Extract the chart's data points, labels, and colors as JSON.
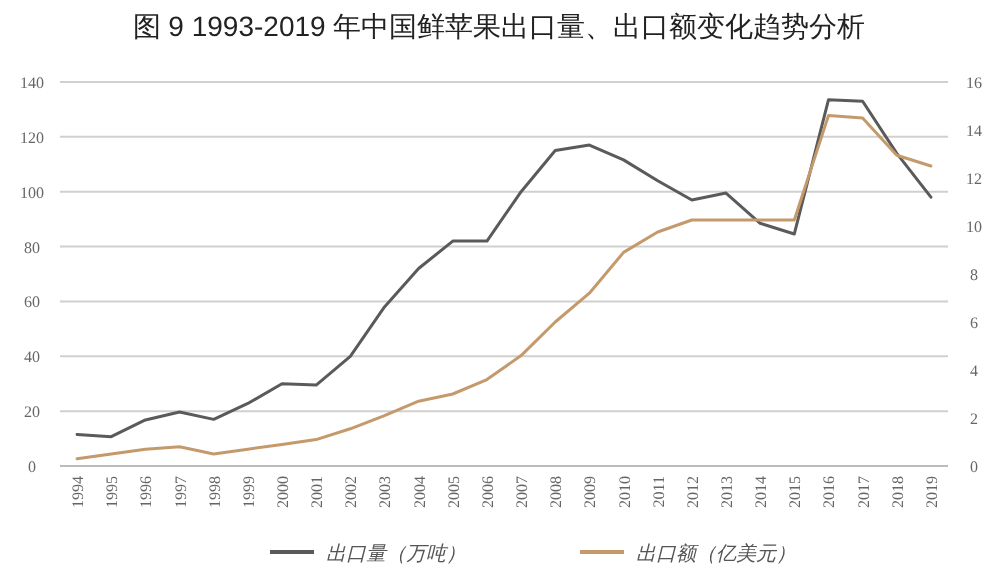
{
  "chart_data": {
    "type": "line",
    "title": "图 9  1993-2019 年中国鲜苹果出口量、出口额变化趋势分析",
    "categories": [
      "1994",
      "1995",
      "1996",
      "1997",
      "1998",
      "1999",
      "2000",
      "2001",
      "2002",
      "2003",
      "2004",
      "2005",
      "2006",
      "2007",
      "2008",
      "2009",
      "2010",
      "2011",
      "2012",
      "2013",
      "2014",
      "2015",
      "2016",
      "2017",
      "2018",
      "2019"
    ],
    "series": [
      {
        "name": "出口量（万吨）",
        "color": "#5a5a5a",
        "values": [
          11.5,
          10.7,
          16.8,
          19.7,
          17,
          22.8,
          30,
          29.5,
          40,
          58,
          72,
          82,
          82,
          100,
          115,
          117,
          111.6,
          104,
          97,
          99.5,
          88.5,
          84.6,
          133.5,
          133,
          114,
          98
        ]
      },
      {
        "name": "出口额（亿美元）",
        "color": "#c49a6c",
        "axis": "y2",
        "values": [
          0.3,
          0.5,
          0.7,
          0.8,
          0.5,
          0.7,
          0.9,
          1.1,
          1.55,
          2.1,
          2.7,
          3.0,
          3.6,
          4.6,
          6.0,
          7.2,
          8.9,
          9.75,
          10.25,
          10.25,
          10.25,
          10.25,
          14.6,
          14.5,
          12.95,
          12.5
        ]
      }
    ],
    "ylim": [
      0,
      140
    ],
    "yticks": [
      0,
      20,
      40,
      60,
      80,
      100,
      120,
      140
    ],
    "y2lim": [
      0,
      16
    ],
    "y2ticks": [
      0,
      2,
      4,
      6,
      8,
      10,
      12,
      14,
      16
    ],
    "grid": "y",
    "legend": "bottom"
  }
}
